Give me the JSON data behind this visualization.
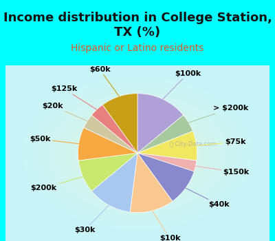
{
  "title": "Income distribution in College Station,\nTX (%)",
  "subtitle": "Hispanic or Latino residents",
  "watermark": "ⓘ City-Data.com",
  "background_cyan": "#00FFFF",
  "labels": [
    "$100k",
    "> $200k",
    "$75k",
    "$150k",
    "$40k",
    "$10k",
    "$30k",
    "$200k",
    "$50k",
    "$20k",
    "$125k",
    "$60k"
  ],
  "values": [
    14,
    5,
    8,
    3,
    10,
    12,
    12,
    9,
    9,
    4,
    4,
    10
  ],
  "colors": [
    "#b0a0d8",
    "#a8c8a0",
    "#f0e860",
    "#f0b0b0",
    "#8888cc",
    "#f8c890",
    "#a8c8f0",
    "#c8e870",
    "#f8a840",
    "#d0c8a0",
    "#e88080",
    "#c8a018"
  ],
  "title_fontsize": 13,
  "subtitle_fontsize": 10,
  "subtitle_color": "#e05828",
  "label_fontsize": 8,
  "title_color": "#111111"
}
